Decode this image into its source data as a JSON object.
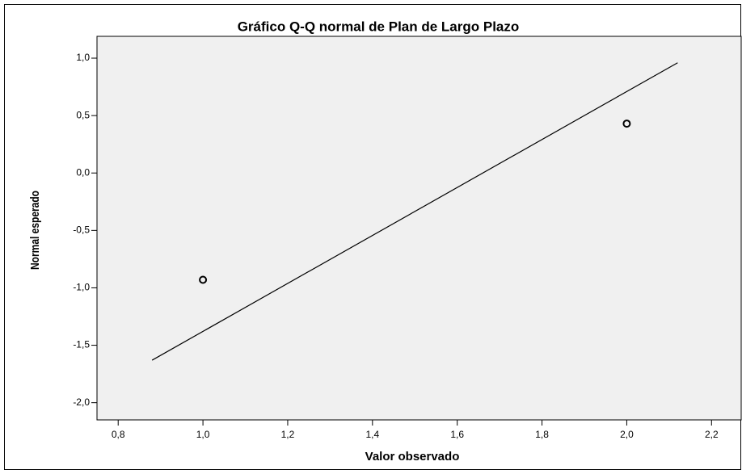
{
  "chart_data": {
    "type": "scatter",
    "title": "Gráfico Q-Q normal de Plan de Largo Plazo",
    "xlabel": "Valor observado",
    "ylabel": "Normal esperado",
    "x": [
      1.0,
      2.0
    ],
    "values": [
      -0.93,
      0.43
    ],
    "reference_line": {
      "x": [
        0.88,
        2.12
      ],
      "y": [
        -1.63,
        0.96
      ]
    },
    "xlim": [
      0.75,
      2.27
    ],
    "ylim": [
      -2.15,
      1.19
    ],
    "xticks": [
      {
        "value": 0.8,
        "label": "0,8"
      },
      {
        "value": 1.0,
        "label": "1,0"
      },
      {
        "value": 1.2,
        "label": "1,2"
      },
      {
        "value": 1.4,
        "label": "1,4"
      },
      {
        "value": 1.6,
        "label": "1,6"
      },
      {
        "value": 1.8,
        "label": "1,8"
      },
      {
        "value": 2.0,
        "label": "2,0"
      },
      {
        "value": 2.2,
        "label": "2,2"
      }
    ],
    "yticks": [
      {
        "value": 1.0,
        "label": "1,0"
      },
      {
        "value": 0.5,
        "label": "0,5"
      },
      {
        "value": 0.0,
        "label": "0,0"
      },
      {
        "value": -0.5,
        "label": "-0,5"
      },
      {
        "value": -1.0,
        "label": "-1,0"
      },
      {
        "value": -1.5,
        "label": "-1,5"
      },
      {
        "value": -2.0,
        "label": "-2,0"
      }
    ],
    "plot_background": "#f0f0f0",
    "marker_color": "#000000",
    "line_color": "#000000"
  }
}
